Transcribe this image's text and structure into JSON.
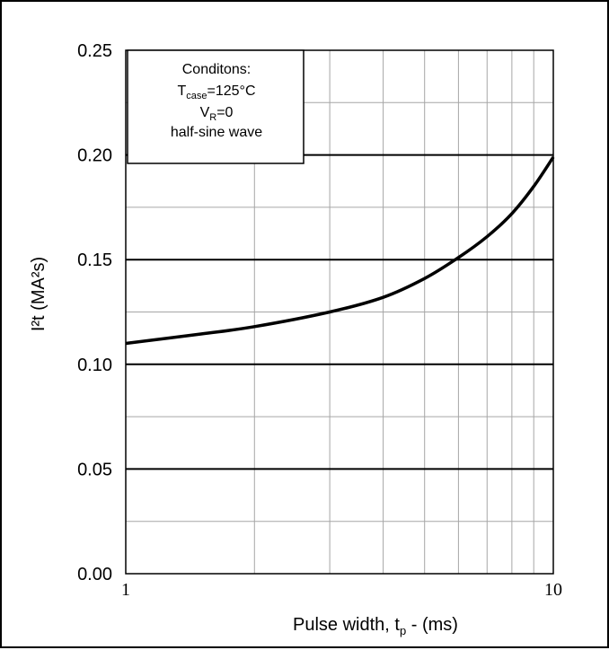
{
  "chart_data": {
    "type": "line",
    "x_scale": "log",
    "xlim": [
      1,
      10
    ],
    "ylim": [
      0,
      0.25
    ],
    "x_ticks": [
      "1",
      "10"
    ],
    "y_ticks": [
      "0.00",
      "0.05",
      "0.10",
      "0.15",
      "0.20",
      "0.25"
    ],
    "grid": true,
    "ylabel": {
      "main": "I²t (MA²s)"
    },
    "xlabel": {
      "prefix": "Pulse width, t",
      "sub": "p",
      "suffix": " -  (ms)"
    },
    "legend": {
      "position": "top-left",
      "line1": "Conditons:",
      "line2_main": "T",
      "line2_sub": "case",
      "line2_rest": "=125°C",
      "line3_main": "V",
      "line3_sub": "R",
      "line3_rest": "=0",
      "line4": "half-sine wave"
    },
    "series": [
      {
        "x": [
          1,
          1.5,
          2,
          3,
          4,
          5,
          6,
          7,
          8,
          9,
          10
        ],
        "y": [
          0.11,
          0.1145,
          0.118,
          0.125,
          0.132,
          0.141,
          0.151,
          0.161,
          0.172,
          0.185,
          0.199
        ],
        "color": "#000000"
      }
    ]
  }
}
